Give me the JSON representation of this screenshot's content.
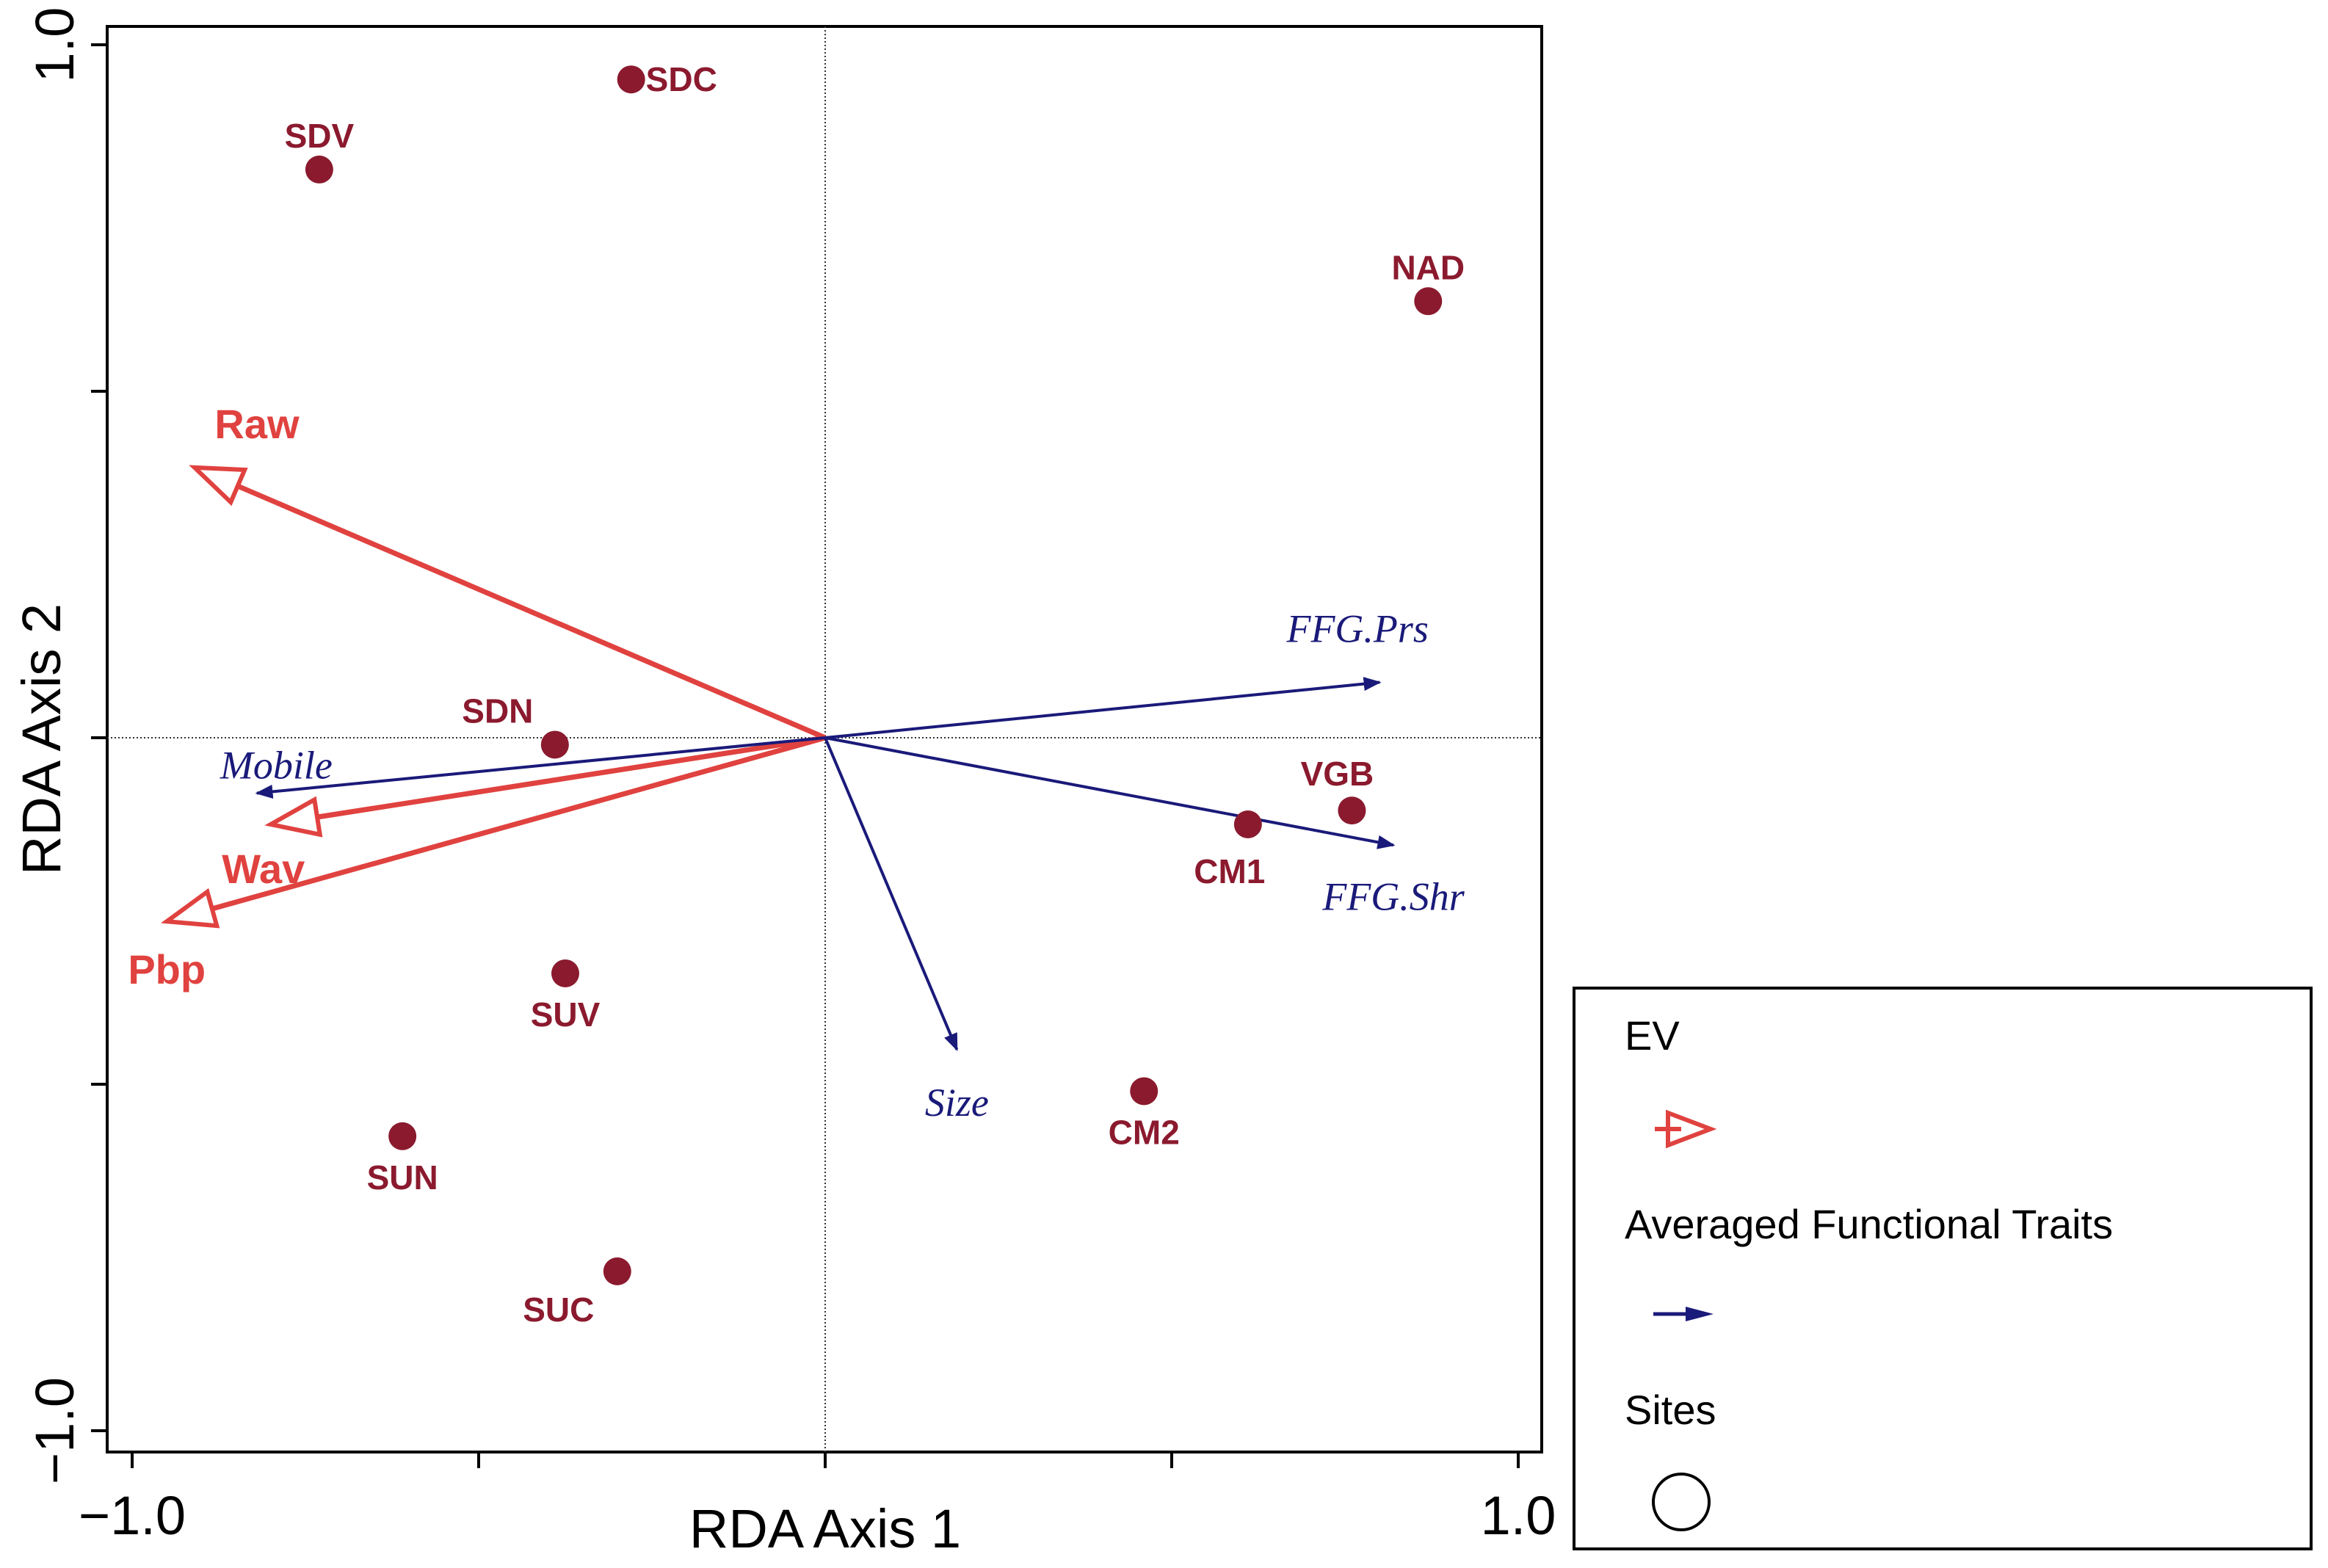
{
  "chart_data": {
    "type": "scatter",
    "xlabel": "RDA Axis 1",
    "ylabel": "RDA Axis 2",
    "xlim": [
      -1.03,
      1.03
    ],
    "ylim": [
      -1.03,
      1.03
    ],
    "x_tick_labels": [
      {
        "value": -1.0,
        "label": "−1.0"
      },
      {
        "value": 1.0,
        "label": "1.0"
      }
    ],
    "y_tick_labels": [
      {
        "value": 1.0,
        "label": "1.0"
      },
      {
        "value": -1.0,
        "label": "−1.0"
      }
    ],
    "minor_ticks": [
      -1.0,
      -0.5,
      0.0,
      0.5,
      1.0
    ],
    "reference_lines": {
      "x": 0,
      "y": 0
    },
    "grid": false,
    "legend_placement": "bottom-right, outside plot",
    "sites": [
      {
        "label": "SDC",
        "x": -0.28,
        "y": 0.95
      },
      {
        "label": "SDV",
        "x": -0.73,
        "y": 0.82
      },
      {
        "label": "NAD",
        "x": 0.87,
        "y": 0.63
      },
      {
        "label": "SDN",
        "x": -0.39,
        "y": -0.01
      },
      {
        "label": "VGB",
        "x": 0.76,
        "y": -0.105
      },
      {
        "label": "CM1",
        "x": 0.61,
        "y": -0.125
      },
      {
        "label": "SUV",
        "x": -0.375,
        "y": -0.34
      },
      {
        "label": "CM2",
        "x": 0.46,
        "y": -0.51
      },
      {
        "label": "SUN",
        "x": -0.61,
        "y": -0.575
      },
      {
        "label": "SUC",
        "x": -0.3,
        "y": -0.77
      }
    ],
    "ev_vectors": [
      {
        "label": "Raw",
        "x": -0.91,
        "y": 0.39
      },
      {
        "label": "Wav",
        "x": -0.8,
        "y": -0.125
      },
      {
        "label": "Pbp",
        "x": -0.95,
        "y": -0.265
      }
    ],
    "trait_vectors": [
      {
        "label": "FFG.Prs",
        "x": 0.8,
        "y": 0.08
      },
      {
        "label": "FFG.Shr",
        "x": 0.82,
        "y": -0.155
      },
      {
        "label": "Mobile",
        "x": -0.82,
        "y": -0.08
      },
      {
        "label": "Size",
        "x": 0.19,
        "y": -0.45
      }
    ]
  },
  "legend": {
    "ev_title": "EV",
    "traits_title": "Averaged Functional Traits",
    "sites_title": "Sites"
  },
  "colors": {
    "site": "#8b1a2e",
    "ev": "#e0423f",
    "trait": "#1a1a7a",
    "axis": "#000000"
  }
}
